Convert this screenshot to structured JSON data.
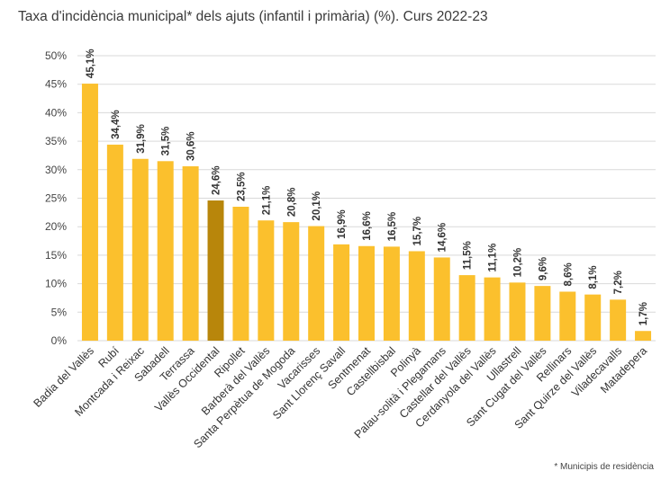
{
  "chart_data": {
    "type": "bar",
    "title": "Taxa d'incidència municipal* dels ajuts (infantil i primària) (%). Curs 2022-23",
    "footnote": "* Municipis de residència",
    "ylim": [
      0,
      50
    ],
    "yticks": [
      "0%",
      "5%",
      "10%",
      "15%",
      "20%",
      "25%",
      "30%",
      "35%",
      "40%",
      "45%",
      "50%"
    ],
    "grid": true,
    "colors": {
      "bar": "#FBC02D",
      "highlight": "#B8860B"
    },
    "highlight_category": "Vallès Occidental",
    "categories": [
      "Badia del Vallès",
      "Rubí",
      "Montcada i Reixac",
      "Sabadell",
      "Terrassa",
      "Vallès Occidental",
      "Ripollet",
      "Barberà del Vallès",
      "Santa Perpètua de Mogoda",
      "Vacarisses",
      "Sant Llorenç Savall",
      "Sentmenat",
      "Castellbisbal",
      "Polinyà",
      "Palau-solità i Plegamans",
      "Castellar del Vallès",
      "Cerdanyola del Vallès",
      "Ullastrell",
      "Sant Cugat del Vallès",
      "Rellinars",
      "Sant Quirze del Vallès",
      "Viladecavalls",
      "Matadepera"
    ],
    "values": [
      45.1,
      34.4,
      31.9,
      31.5,
      30.6,
      24.6,
      23.5,
      21.1,
      20.8,
      20.1,
      16.9,
      16.6,
      16.5,
      15.7,
      14.6,
      11.5,
      11.1,
      10.2,
      9.6,
      8.6,
      8.1,
      7.2,
      1.7
    ],
    "labels": [
      "45,1%",
      "34,4%",
      "31,9%",
      "31,5%",
      "30,6%",
      "24,6%",
      "23,5%",
      "21,1%",
      "20,8%",
      "20,1%",
      "16,9%",
      "16,6%",
      "16,5%",
      "15,7%",
      "14,6%",
      "11,5%",
      "11,1%",
      "10,2%",
      "9,6%",
      "8,6%",
      "8,1%",
      "7,2%",
      "1,7%"
    ]
  }
}
